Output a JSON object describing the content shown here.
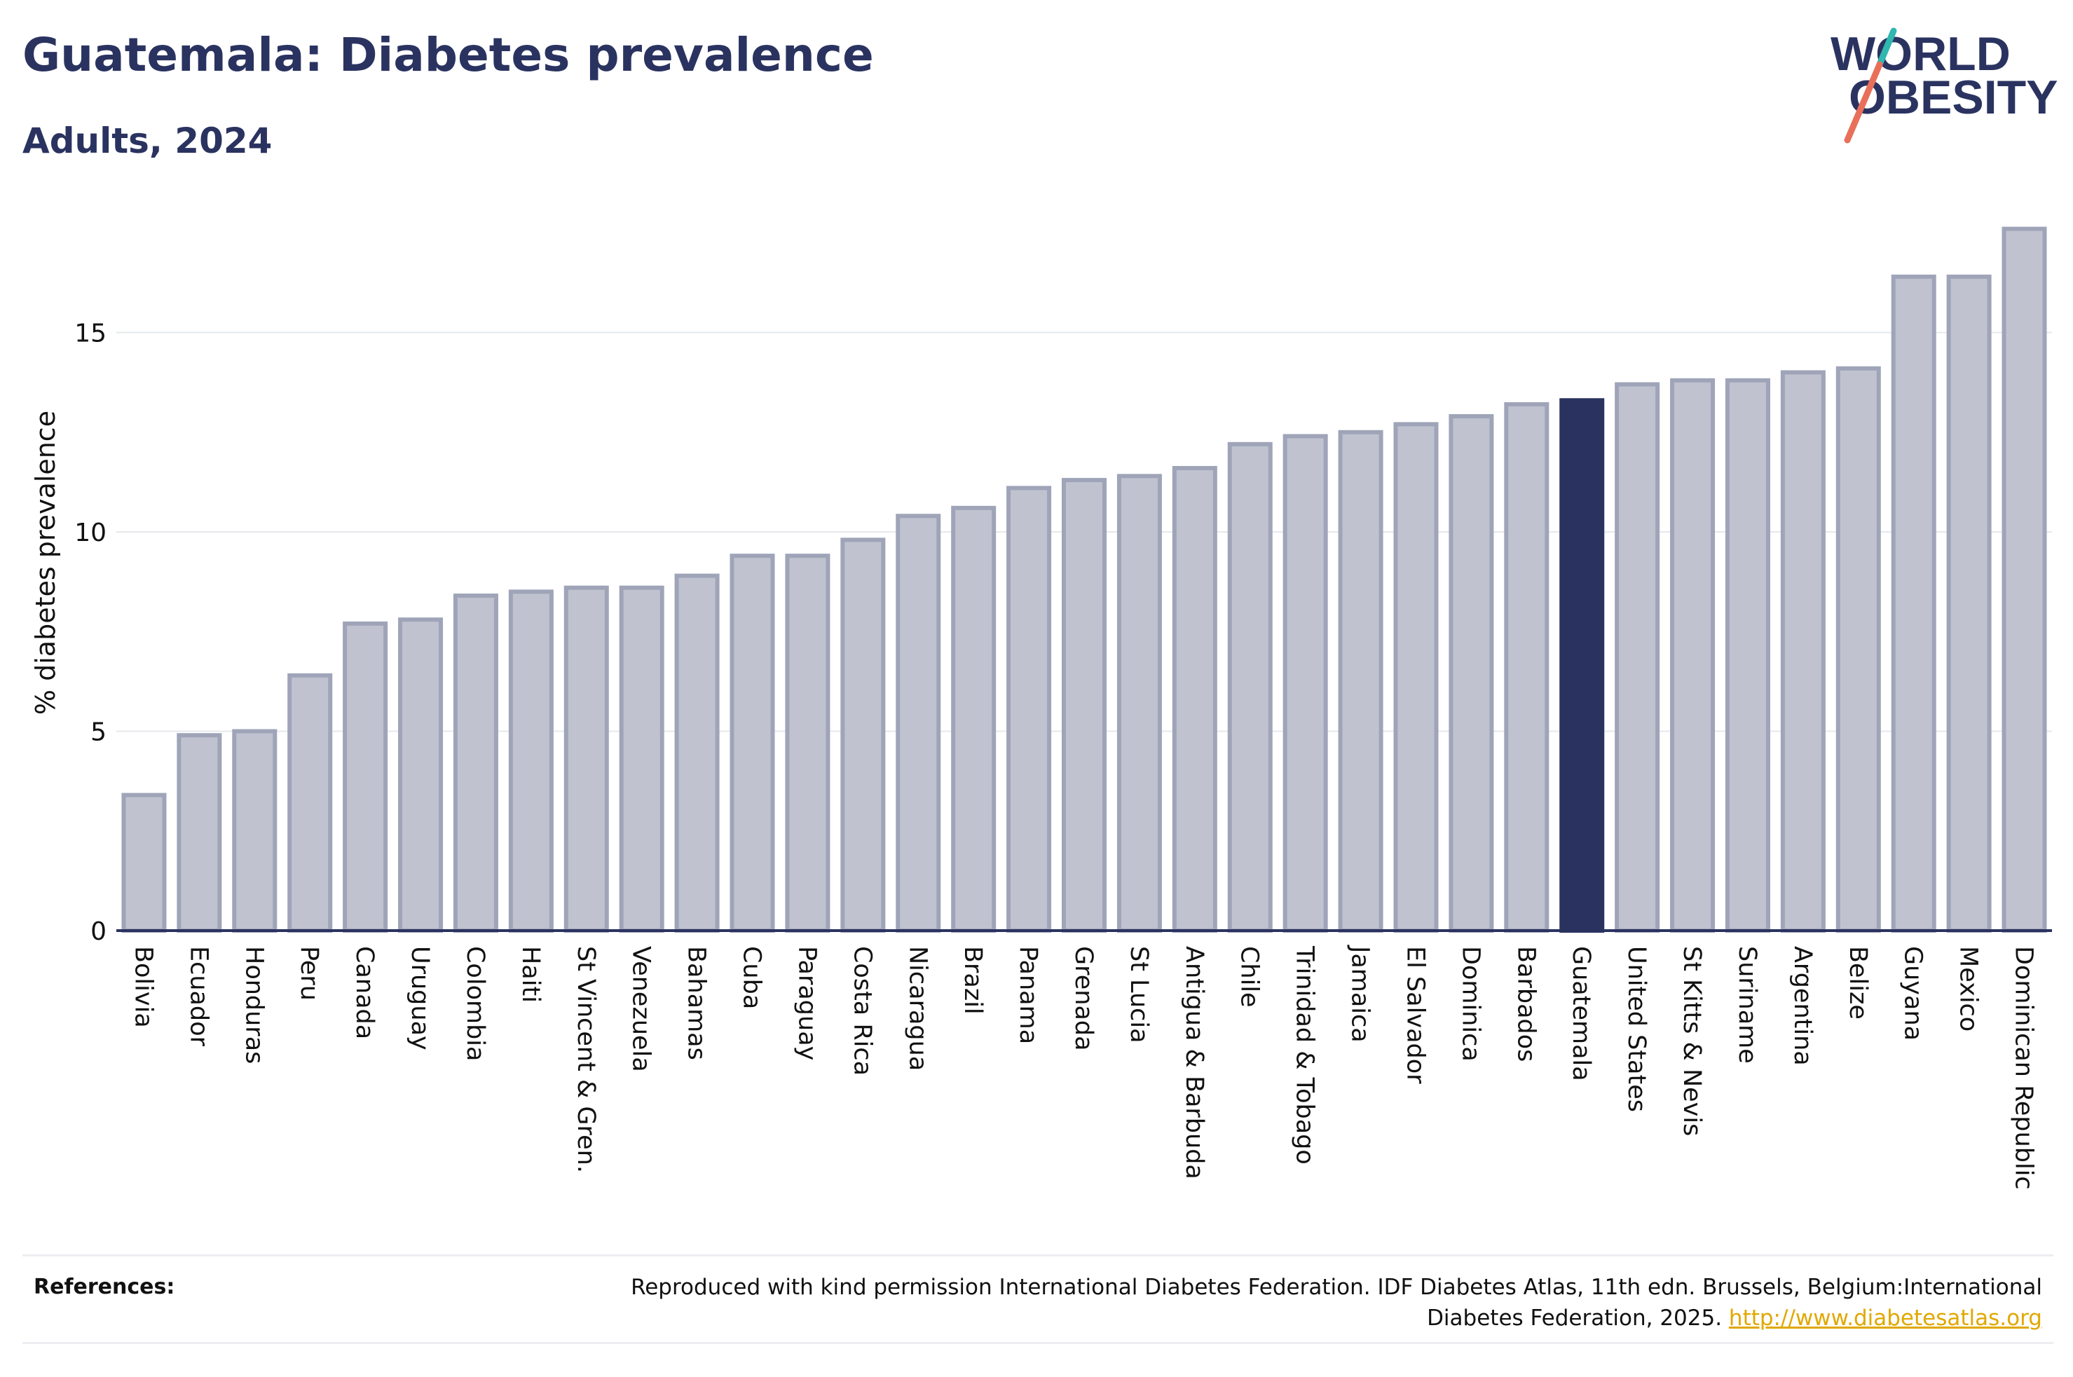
{
  "header": {
    "title": "Guatemala: Diabetes prevalence",
    "subtitle": "Adults, 2024"
  },
  "logo": {
    "line1": "WORLD",
    "line2": "OBESITY"
  },
  "colors": {
    "highlight": "#2a3360",
    "bar_fill": "#c0c3cf",
    "bar_stroke": "#9fa4b8",
    "grid": "#e6e8ec",
    "axis": "#2a3360",
    "logo_teal": "#2fb7b0",
    "logo_coral": "#e8705a",
    "link": "#e0a800"
  },
  "chart_data": {
    "type": "bar",
    "title": "Guatemala: Diabetes prevalence",
    "subtitle": "Adults, 2024",
    "xlabel": "",
    "ylabel": "% diabetes prevalence",
    "ylim": [
      0,
      17.8
    ],
    "yticks": [
      0,
      5,
      10,
      15
    ],
    "grid": true,
    "highlight": "Guatemala",
    "categories": [
      "Bolivia",
      "Ecuador",
      "Honduras",
      "Peru",
      "Canada",
      "Uruguay",
      "Colombia",
      "Haiti",
      "St Vincent & Gren.",
      "Venezuela",
      "Bahamas",
      "Cuba",
      "Paraguay",
      "Costa Rica",
      "Nicaragua",
      "Brazil",
      "Panama",
      "Grenada",
      "St Lucia",
      "Antigua & Barbuda",
      "Chile",
      "Trinidad & Tobago",
      "Jamaica",
      "El Salvador",
      "Dominica",
      "Barbados",
      "Guatemala",
      "United States",
      "St Kitts & Nevis",
      "Suriname",
      "Argentina",
      "Belize",
      "Guyana",
      "Mexico",
      "Dominican Republic"
    ],
    "values": [
      3.4,
      4.9,
      5.0,
      6.4,
      7.7,
      7.8,
      8.4,
      8.5,
      8.6,
      8.6,
      8.9,
      9.4,
      9.4,
      9.8,
      10.4,
      10.6,
      11.1,
      11.3,
      11.4,
      11.6,
      12.2,
      12.4,
      12.5,
      12.7,
      12.9,
      13.2,
      13.3,
      13.7,
      13.8,
      13.8,
      14.0,
      14.1,
      16.4,
      16.4,
      17.6
    ]
  },
  "references": {
    "label": "References:",
    "text": "Reproduced with kind permission International Diabetes Federation. IDF Diabetes Atlas, 11th edn. Brussels, Belgium:International Diabetes Federation, 2025.",
    "link": "http://www.diabetesatlas.org"
  }
}
